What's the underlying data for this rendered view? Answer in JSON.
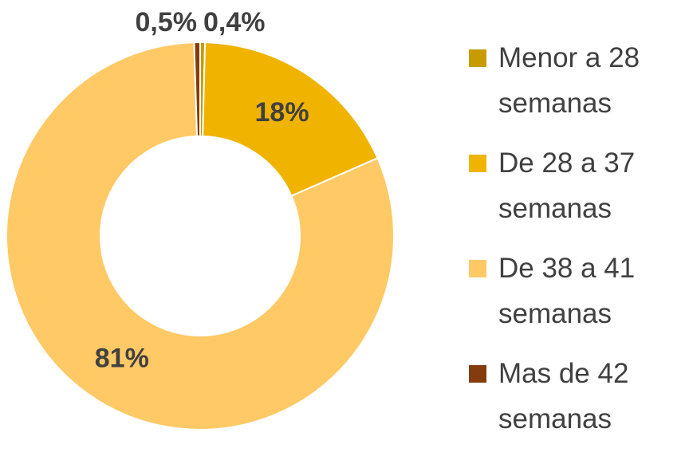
{
  "chart_data": {
    "type": "donut",
    "categories": [
      "Menor a 28 semanas",
      "De 28 a 37 semanas",
      "De 38 a 41 semanas",
      "Mas de 42 semanas"
    ],
    "values": [
      0.4,
      18,
      81,
      0.5
    ],
    "value_labels": [
      "0,4%",
      "18%",
      "81%",
      "0,5%"
    ],
    "colors": [
      "#c89b00",
      "#f0b400",
      "#ffc966",
      "#843c0c"
    ],
    "legend": "right"
  }
}
